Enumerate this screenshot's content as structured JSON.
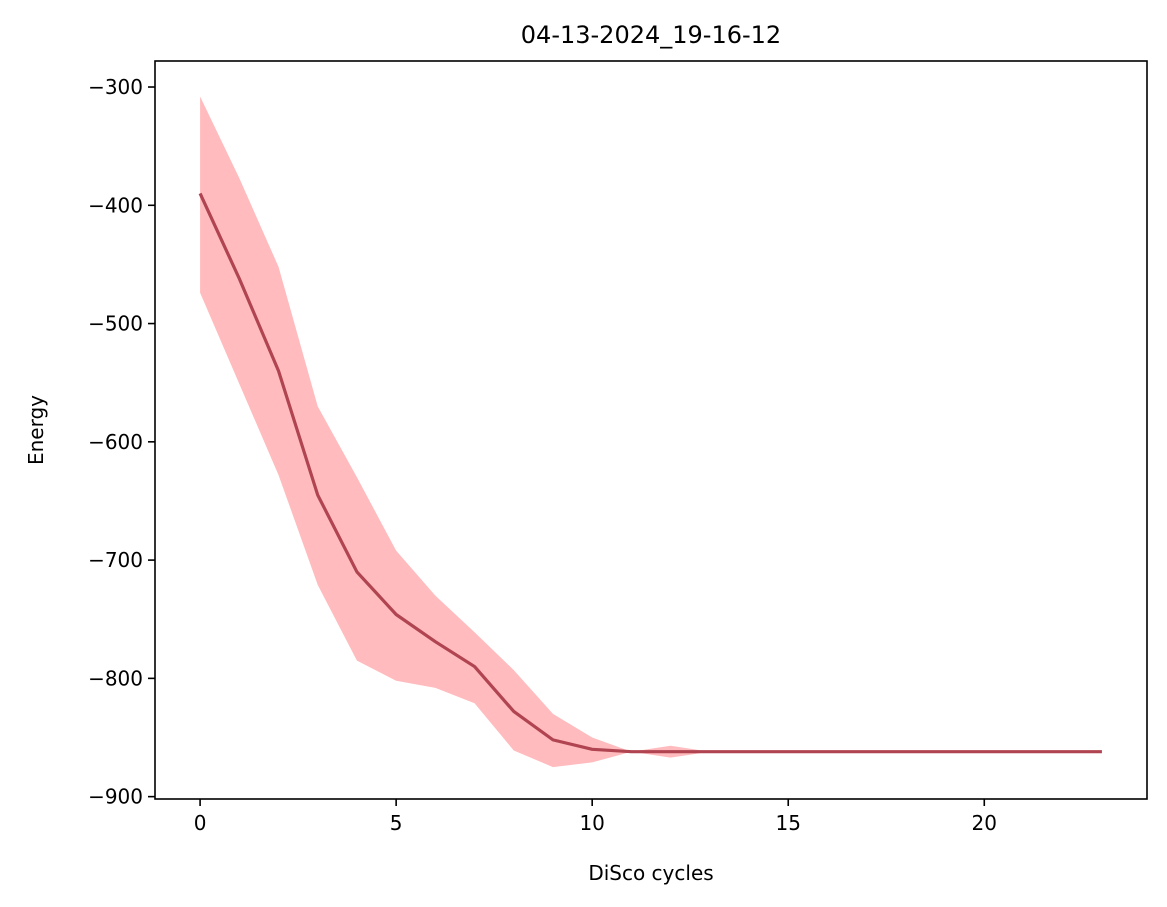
{
  "chart_data": {
    "type": "line",
    "title": "04-13-2024_19-16-12",
    "xlabel": "DiSco cycles",
    "ylabel": "Energy",
    "xlim": [
      -1.15,
      24.15
    ],
    "ylim": [
      -902,
      -278
    ],
    "x_ticks": [
      0,
      5,
      10,
      15,
      20
    ],
    "y_ticks": [
      -300,
      -400,
      -500,
      -600,
      -700,
      -800,
      -900
    ],
    "x_tick_labels": [
      "0",
      "5",
      "10",
      "15",
      "20"
    ],
    "y_tick_labels": [
      "−300",
      "−400",
      "−500",
      "−600",
      "−700",
      "−800",
      "−900"
    ],
    "grid": false,
    "legend": null,
    "colors": {
      "line": "#b04450",
      "band": "#ffbbbd"
    },
    "series": [
      {
        "x": [
          0,
          1,
          2,
          3,
          4,
          5,
          6,
          7,
          8,
          9,
          10,
          11,
          12,
          13,
          14,
          15,
          16,
          17,
          18,
          19,
          20,
          21,
          22,
          23
        ],
        "values": [
          -390,
          -462,
          -540,
          -645,
          -710,
          -746,
          -769,
          -790,
          -828,
          -852,
          -860,
          -862,
          -862,
          -862,
          -862,
          -862,
          -862,
          -862,
          -862,
          -862,
          -862,
          -862,
          -862,
          -862
        ],
        "upper": [
          -308,
          -377,
          -452,
          -570,
          -630,
          -692,
          -730,
          -761,
          -793,
          -830,
          -850,
          -862,
          -857,
          -862,
          -862,
          -862,
          -862,
          -862,
          -862,
          -862,
          -862,
          -862,
          -862,
          -862
        ],
        "lower": [
          -474,
          -551,
          -628,
          -721,
          -785,
          -802,
          -808,
          -821,
          -861,
          -875,
          -871,
          -862,
          -867,
          -862,
          -862,
          -862,
          -862,
          -862,
          -862,
          -862,
          -862,
          -862,
          -862,
          -862
        ]
      }
    ]
  }
}
